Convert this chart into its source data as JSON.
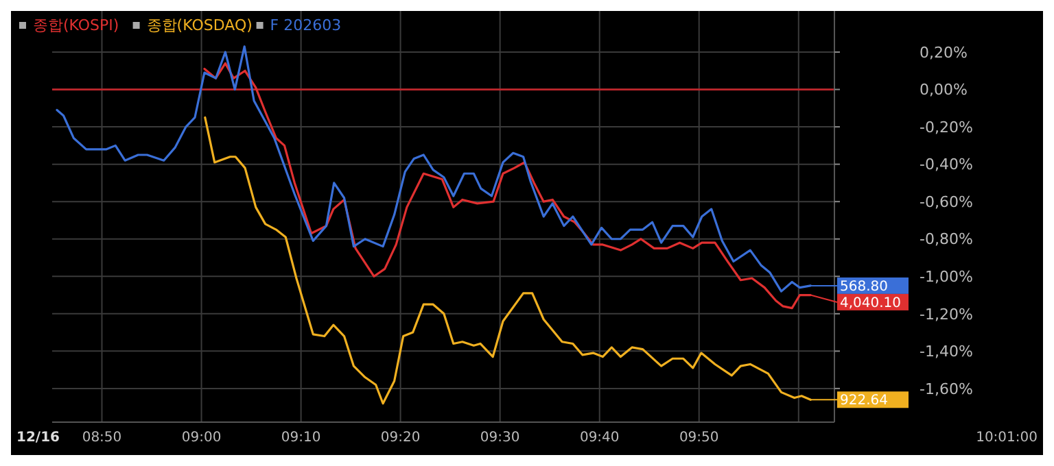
{
  "chart_data": {
    "type": "line",
    "legend": "top left",
    "grid": true,
    "marker": "none",
    "line_style": "solid",
    "xlim": [
      8.75,
      10.06
    ],
    "ylim": [
      -1.78,
      0.42
    ],
    "xticks": [
      {
        "value": 8.8333,
        "label": "08:50"
      },
      {
        "value": 9,
        "label": "09:00"
      },
      {
        "value": 9.1667,
        "label": "09:10"
      },
      {
        "value": 9.3333,
        "label": "09:20"
      },
      {
        "value": 9.5,
        "label": "09:30"
      },
      {
        "value": 9.6667,
        "label": "09:40"
      },
      {
        "value": 9.8333,
        "label": "09:50"
      },
      {
        "value": 10,
        "label": null
      }
    ],
    "yticks": [
      {
        "value": 0.2,
        "label": "0,20%"
      },
      {
        "value": 0,
        "label": "0,00%"
      },
      {
        "value": -0.2,
        "label": "-0,20%"
      },
      {
        "value": -0.4,
        "label": "-0,40%"
      },
      {
        "value": -0.6,
        "label": "-0,60%"
      },
      {
        "value": -0.8,
        "label": "-0,80%"
      },
      {
        "value": -1,
        "label": "-1,00%"
      },
      {
        "value": -1.2,
        "label": "-1,20%"
      },
      {
        "value": -1.4,
        "label": "-1,40%"
      },
      {
        "value": -1.6,
        "label": "-1,60%"
      }
    ],
    "ref_lines": [
      {
        "axis": "y",
        "value": 0,
        "color": "#c0262b"
      }
    ],
    "series": [
      {
        "name": "종합(KOSPI)",
        "color": "#e03030",
        "x": [
          9.005,
          9.024,
          9.04,
          9.054,
          9.073,
          9.091,
          9.107,
          9.125,
          9.139,
          9.156,
          9.184,
          9.209,
          9.221,
          9.239,
          9.258,
          9.289,
          9.307,
          9.326,
          9.344,
          9.372,
          9.403,
          9.422,
          9.437,
          9.462,
          9.489,
          9.505,
          9.524,
          9.541,
          9.557,
          9.573,
          9.588,
          9.607,
          9.625,
          9.641,
          9.656,
          9.672,
          9.702,
          9.721,
          9.736,
          9.758,
          9.78,
          9.801,
          9.823,
          9.838,
          9.86,
          9.881,
          9.903,
          9.922,
          9.943,
          9.962,
          9.974,
          9.989,
          10.002,
          10.02
        ],
        "values": [
          0.11,
          0.06,
          0.14,
          0.06,
          0.1,
          0.01,
          -0.12,
          -0.26,
          -0.3,
          -0.5,
          -0.77,
          -0.73,
          -0.64,
          -0.59,
          -0.85,
          -1,
          -0.96,
          -0.83,
          -0.63,
          -0.45,
          -0.48,
          -0.63,
          -0.59,
          -0.61,
          -0.6,
          -0.45,
          -0.42,
          -0.39,
          -0.5,
          -0.6,
          -0.59,
          -0.68,
          -0.71,
          -0.77,
          -0.83,
          -0.83,
          -0.86,
          -0.83,
          -0.8,
          -0.85,
          -0.85,
          -0.82,
          -0.85,
          -0.82,
          -0.82,
          -0.92,
          -1.02,
          -1.01,
          -1.06,
          -1.13,
          -1.16,
          -1.17,
          -1.1,
          -1.1
        ]
      },
      {
        "name": "종합(KOSDAQ)",
        "color": "#f0b020",
        "x": [
          9.006,
          9.022,
          9.048,
          9.057,
          9.073,
          9.091,
          9.107,
          9.125,
          9.141,
          9.159,
          9.187,
          9.206,
          9.221,
          9.239,
          9.255,
          9.274,
          9.292,
          9.304,
          9.323,
          9.338,
          9.354,
          9.372,
          9.388,
          9.406,
          9.422,
          9.437,
          9.456,
          9.467,
          9.488,
          9.505,
          9.539,
          9.554,
          9.573,
          9.604,
          9.622,
          9.638,
          9.656,
          9.672,
          9.687,
          9.702,
          9.721,
          9.739,
          9.77,
          9.789,
          9.807,
          9.823,
          9.837,
          9.86,
          9.888,
          9.903,
          9.919,
          9.949,
          9.971,
          9.993,
          10.005,
          10.02
        ],
        "values": [
          -0.15,
          -0.39,
          -0.36,
          -0.36,
          -0.42,
          -0.63,
          -0.72,
          -0.75,
          -0.79,
          -1.01,
          -1.31,
          -1.32,
          -1.26,
          -1.32,
          -1.48,
          -1.54,
          -1.58,
          -1.68,
          -1.56,
          -1.32,
          -1.3,
          -1.15,
          -1.15,
          -1.2,
          -1.36,
          -1.35,
          -1.37,
          -1.36,
          -1.43,
          -1.24,
          -1.09,
          -1.09,
          -1.23,
          -1.35,
          -1.36,
          -1.42,
          -1.41,
          -1.43,
          -1.38,
          -1.43,
          -1.38,
          -1.39,
          -1.48,
          -1.44,
          -1.44,
          -1.49,
          -1.41,
          -1.47,
          -1.53,
          -1.48,
          -1.47,
          -1.52,
          -1.62,
          -1.65,
          -1.64,
          -1.66
        ]
      },
      {
        "name": "F 202603",
        "color": "#3a6fd8",
        "x": [
          8.758,
          8.769,
          8.786,
          8.807,
          8.841,
          8.856,
          8.872,
          8.894,
          8.909,
          8.937,
          8.956,
          8.974,
          8.989,
          9.005,
          9.024,
          9.04,
          9.056,
          9.072,
          9.088,
          9.122,
          9.156,
          9.187,
          9.209,
          9.222,
          9.239,
          9.255,
          9.274,
          9.304,
          9.323,
          9.341,
          9.356,
          9.372,
          9.388,
          9.406,
          9.422,
          9.44,
          9.456,
          9.468,
          9.486,
          9.505,
          9.522,
          9.539,
          9.551,
          9.573,
          9.588,
          9.607,
          9.622,
          9.653,
          9.67,
          9.687,
          9.702,
          9.718,
          9.739,
          9.755,
          9.77,
          9.789,
          9.807,
          9.823,
          9.838,
          9.854,
          9.872,
          9.891,
          9.919,
          9.937,
          9.952,
          9.971,
          9.989,
          10.002,
          10.02
        ],
        "values": [
          -0.11,
          -0.14,
          -0.26,
          -0.32,
          -0.32,
          -0.3,
          -0.38,
          -0.35,
          -0.35,
          -0.38,
          -0.31,
          -0.2,
          -0.15,
          0.09,
          0.06,
          0.2,
          0,
          0.23,
          -0.06,
          -0.26,
          -0.56,
          -0.81,
          -0.73,
          -0.5,
          -0.58,
          -0.84,
          -0.8,
          -0.84,
          -0.67,
          -0.44,
          -0.37,
          -0.35,
          -0.43,
          -0.47,
          -0.57,
          -0.45,
          -0.45,
          -0.53,
          -0.57,
          -0.39,
          -0.34,
          -0.36,
          -0.49,
          -0.68,
          -0.61,
          -0.73,
          -0.68,
          -0.83,
          -0.74,
          -0.8,
          -0.8,
          -0.75,
          -0.75,
          -0.71,
          -0.82,
          -0.73,
          -0.73,
          -0.79,
          -0.68,
          -0.64,
          -0.81,
          -0.92,
          -0.86,
          -0.94,
          -0.98,
          -1.08,
          -1.03,
          -1.06,
          -1.05
        ]
      }
    ],
    "annotations": [
      "12/16",
      "10:01:00",
      "568.80",
      "4,040.10",
      "922.64"
    ]
  }
}
